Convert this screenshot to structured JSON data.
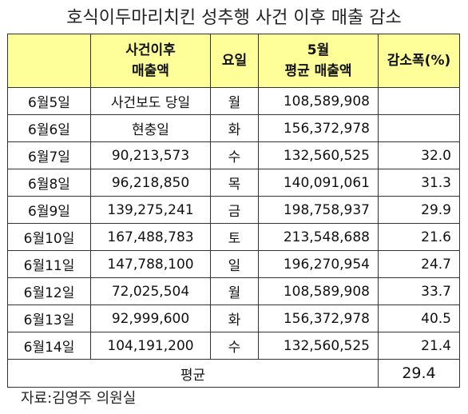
{
  "title": "호식이두마리치킨 성추행 사건 이후 매출 감소",
  "headers": {
    "date": "",
    "sales_line1": "사건이후",
    "sales_line2": "매출액",
    "day": "요일",
    "avg_line1": "5월",
    "avg_line2": "평균 매출액",
    "decrease": "감소폭(%)"
  },
  "rows": [
    {
      "date": "6월5일",
      "sales": "사건보도 당일",
      "day": "월",
      "avg": "108,589,908",
      "decrease": ""
    },
    {
      "date": "6월6일",
      "sales": "현충일",
      "day": "화",
      "avg": "156,372,978",
      "decrease": ""
    },
    {
      "date": "6월7일",
      "sales": "90,213,573",
      "day": "수",
      "avg": "132,560,525",
      "decrease": "32.0"
    },
    {
      "date": "6월8일",
      "sales": "96,218,850",
      "day": "목",
      "avg": "140,091,061",
      "decrease": "31.3"
    },
    {
      "date": "6월9일",
      "sales": "139,275,241",
      "day": "금",
      "avg": "198,758,937",
      "decrease": "29.9"
    },
    {
      "date": "6월10일",
      "sales": "167,488,783",
      "day": "토",
      "avg": "213,548,688",
      "decrease": "21.6"
    },
    {
      "date": "6월11일",
      "sales": "147,788,100",
      "day": "일",
      "avg": "196,270,954",
      "decrease": "24.7"
    },
    {
      "date": "6월12일",
      "sales": "72,025,504",
      "day": "월",
      "avg": "108,589,908",
      "decrease": "33.7"
    },
    {
      "date": "6월13일",
      "sales": "92,999,600",
      "day": "화",
      "avg": "156,372,978",
      "decrease": "40.5"
    },
    {
      "date": "6월14일",
      "sales": "104,191,200",
      "day": "수",
      "avg": "132,560,525",
      "decrease": "21.4"
    }
  ],
  "average": {
    "label": "평균",
    "value": "29.4"
  },
  "source": "자료:김영주 의원실",
  "colors": {
    "header_bg": "#ffff99",
    "border": "#333333"
  }
}
